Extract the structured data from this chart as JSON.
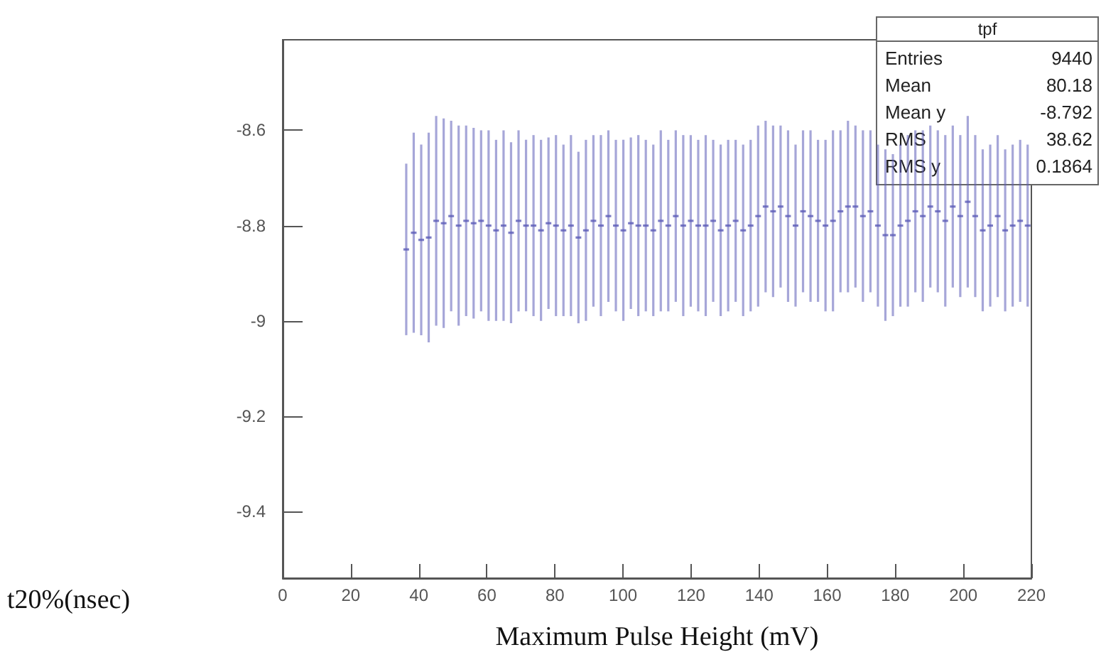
{
  "chart_data": {
    "type": "scatter",
    "xlabel": "Maximum Pulse Height (mV)",
    "ylabel": "t20%(nsec)",
    "xlim": [
      0,
      220
    ],
    "xticks": [
      0,
      20,
      40,
      60,
      80,
      100,
      120,
      140,
      160,
      180,
      200,
      220
    ],
    "ylim": [
      -9.54,
      -8.41
    ],
    "yticks": [
      -9.4,
      -9.2,
      -9,
      -8.8,
      -8.6
    ],
    "grid": false,
    "annotations": [
      "tpf",
      "Entries",
      "9440",
      "Mean",
      "80.18",
      "Mean y",
      "-8.792",
      "RMS",
      "38.62",
      "RMS y",
      "0.1864"
    ],
    "x": [
      36.3,
      38.5,
      40.7,
      42.9,
      45.1,
      47.3,
      49.5,
      51.7,
      53.9,
      56.1,
      58.3,
      60.5,
      62.7,
      64.9,
      67.1,
      69.3,
      71.5,
      73.7,
      75.9,
      78.1,
      80.3,
      82.5,
      84.7,
      86.9,
      89.1,
      91.3,
      93.5,
      95.7,
      97.9,
      100.1,
      102.3,
      104.5,
      106.7,
      108.9,
      111.1,
      113.3,
      115.5,
      117.7,
      119.9,
      122.1,
      124.3,
      126.5,
      128.7,
      130.9,
      133.1,
      135.3,
      137.5,
      139.7,
      141.9,
      144.1,
      146.3,
      148.5,
      150.7,
      152.9,
      155.1,
      157.3,
      159.5,
      161.7,
      163.9,
      166.1,
      168.3,
      170.5,
      172.7,
      174.9,
      177.1,
      179.3,
      181.5,
      183.7,
      185.9,
      188.1,
      190.3,
      192.5,
      194.7,
      196.9,
      199.1,
      201.3,
      203.5,
      205.7,
      207.9,
      210.1,
      212.3,
      214.5,
      216.7,
      218.9
    ],
    "series": [
      {
        "color": "#5c5cb8",
        "values": [
          -8.85,
          -8.815,
          -8.83,
          -8.825,
          -8.79,
          -8.795,
          -8.78,
          -8.8,
          -8.79,
          -8.795,
          -8.79,
          -8.8,
          -8.81,
          -8.8,
          -8.815,
          -8.79,
          -8.8,
          -8.8,
          -8.81,
          -8.795,
          -8.8,
          -8.81,
          -8.8,
          -8.825,
          -8.81,
          -8.79,
          -8.8,
          -8.78,
          -8.8,
          -8.81,
          -8.795,
          -8.8,
          -8.8,
          -8.81,
          -8.79,
          -8.8,
          -8.78,
          -8.8,
          -8.79,
          -8.8,
          -8.8,
          -8.79,
          -8.81,
          -8.8,
          -8.79,
          -8.81,
          -8.8,
          -8.78,
          -8.76,
          -8.77,
          -8.76,
          -8.78,
          -8.8,
          -8.77,
          -8.78,
          -8.79,
          -8.8,
          -8.79,
          -8.77,
          -8.76,
          -8.76,
          -8.78,
          -8.77,
          -8.8,
          -8.82,
          -8.82,
          -8.8,
          -8.79,
          -8.77,
          -8.78,
          -8.76,
          -8.77,
          -8.79,
          -8.76,
          -8.78,
          -8.75,
          -8.78,
          -8.81,
          -8.8,
          -8.78,
          -8.81,
          -8.8,
          -8.79,
          -8.8
        ],
        "errors": [
          0.18,
          0.21,
          0.2,
          0.22,
          0.22,
          0.22,
          0.2,
          0.21,
          0.2,
          0.2,
          0.19,
          0.2,
          0.19,
          0.2,
          0.19,
          0.19,
          0.18,
          0.19,
          0.19,
          0.18,
          0.19,
          0.18,
          0.19,
          0.18,
          0.19,
          0.18,
          0.19,
          0.18,
          0.18,
          0.19,
          0.18,
          0.19,
          0.18,
          0.18,
          0.19,
          0.18,
          0.18,
          0.19,
          0.18,
          0.18,
          0.19,
          0.17,
          0.18,
          0.18,
          0.17,
          0.18,
          0.18,
          0.19,
          0.18,
          0.18,
          0.17,
          0.18,
          0.17,
          0.17,
          0.18,
          0.17,
          0.18,
          0.19,
          0.17,
          0.18,
          0.17,
          0.18,
          0.17,
          0.17,
          0.18,
          0.17,
          0.17,
          0.18,
          0.17,
          0.18,
          0.17,
          0.17,
          0.18,
          0.17,
          0.17,
          0.18,
          0.17,
          0.17,
          0.17,
          0.17,
          0.17,
          0.17,
          0.17,
          0.17
        ]
      }
    ]
  }
}
